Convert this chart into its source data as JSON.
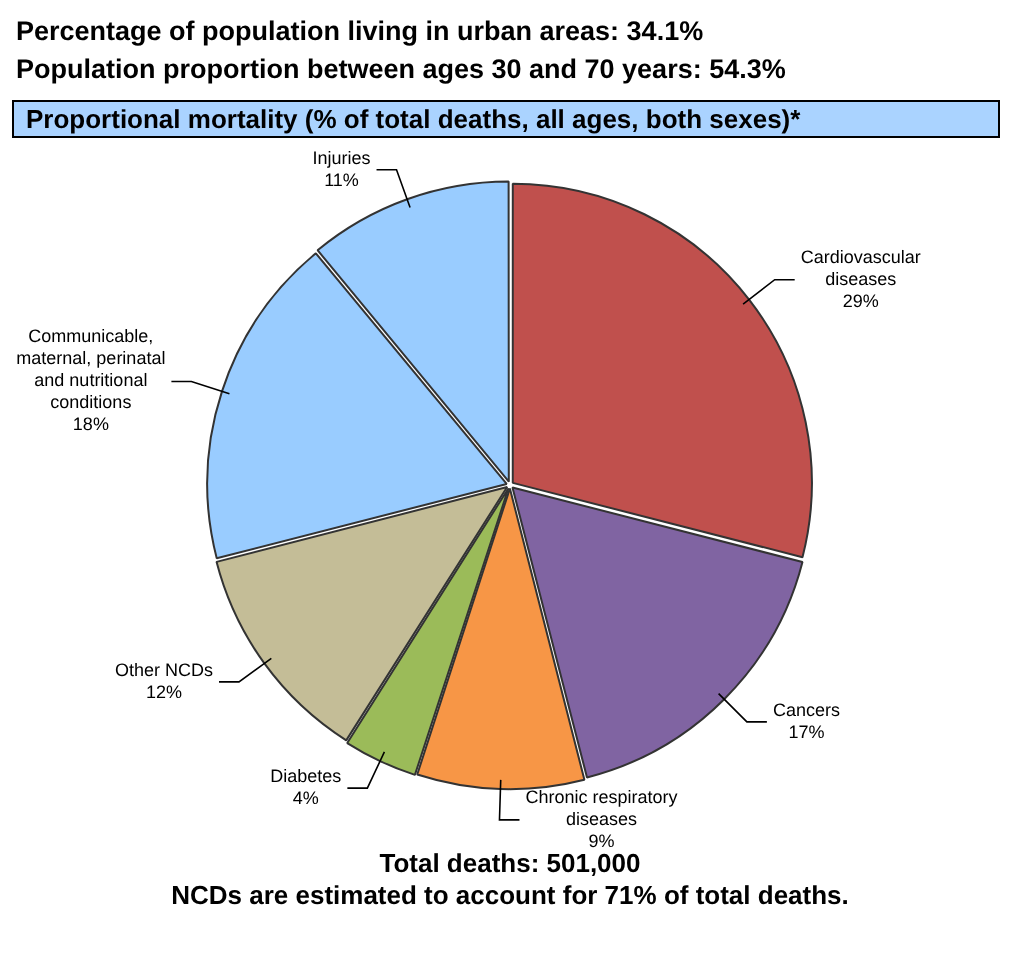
{
  "chart_data": {
    "type": "pie",
    "title": "Proportional mortality (% of total deaths, all ages, both sexes)*",
    "categories": [
      "Cardiovascular diseases",
      "Cancers",
      "Chronic respiratory diseases",
      "Diabetes",
      "Other NCDs",
      "Communicable, maternal, perinatal and nutritional conditions",
      "Injuries"
    ],
    "values": [
      29,
      17,
      9,
      4,
      12,
      18,
      11
    ],
    "colors": [
      "#c0504d",
      "#8064a2",
      "#f79646",
      "#9bbb59",
      "#c4bd97",
      "#99ccff",
      "#99ccff"
    ],
    "value_labels": [
      "29%",
      "17%",
      "9%",
      "4%",
      "12%",
      "18%",
      "11%"
    ],
    "annotations": [
      "Percentage of population living in urban areas: 34.1%",
      "Population proportion between ages 30 and 70 years:  54.3%",
      "Total deaths: 501,000",
      "NCDs are estimated to account for 71% of total deaths."
    ]
  }
}
